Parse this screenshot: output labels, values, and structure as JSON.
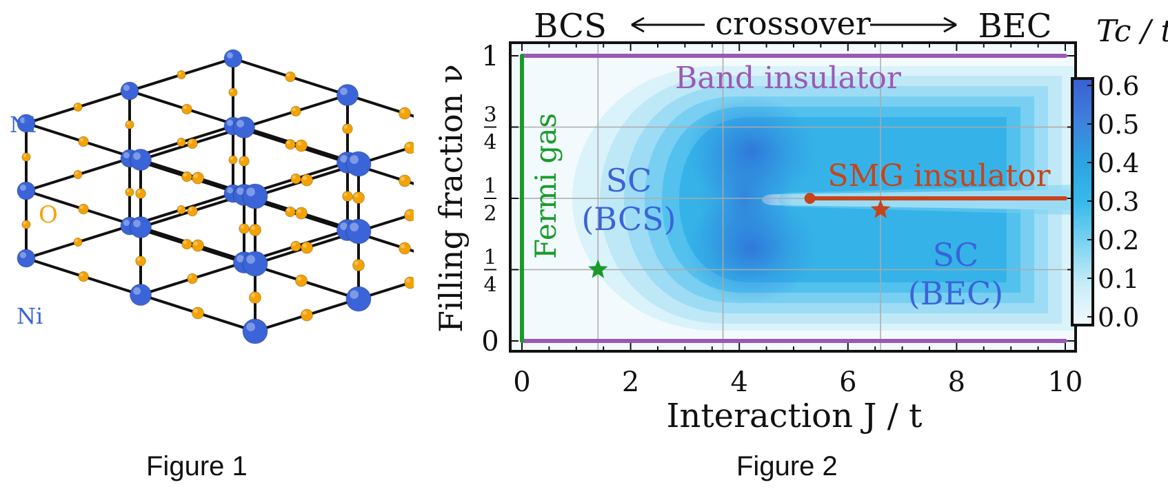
{
  "figure1": {
    "caption": "Figure 1",
    "labels": {
      "ni_top": "Ni",
      "ni_bottom": "Ni",
      "oxygen": "O"
    },
    "colors": {
      "ni": "#3a64d8",
      "o": "#f5a200",
      "bond": "#111111",
      "ni_label": "#3a64d8",
      "o_label": "#f5a200"
    }
  },
  "figure2": {
    "caption": "Figure 2",
    "regime_labels": {
      "left": "BCS",
      "middle": "crossover",
      "right": "BEC"
    },
    "phase_labels": {
      "band_insulator": "Band insulator",
      "fermi_gas": "Fermi gas",
      "sc_bcs_line1": "SC",
      "sc_bcs_line2": "(BCS)",
      "smg_insulator": "SMG insulator",
      "sc_bec_line1": "SC",
      "sc_bec_line2": "(BEC)"
    },
    "colorbar": {
      "title": "Tc / t",
      "ticks": [
        "0.6",
        "0.5",
        "0.4",
        "0.3",
        "0.2",
        "0.1",
        "0.0"
      ],
      "range": [
        0.0,
        0.6
      ]
    },
    "colors": {
      "band": "#9b59b6",
      "fermi": "#1a9a2a",
      "smg": "#c8431a",
      "sc_label": "#3a64d8",
      "grid": "#aaaaaa"
    }
  },
  "chart_data": {
    "type": "heatmap",
    "xlabel": "Interaction J / t",
    "ylabel": "Filling fraction ν",
    "x_ticks": [
      "0",
      "2",
      "4",
      "6",
      "8",
      "10"
    ],
    "y_ticks": [
      {
        "value": 0,
        "label": "0"
      },
      {
        "value": 0.25,
        "label": "1/4"
      },
      {
        "value": 0.5,
        "label": "1/2"
      },
      {
        "value": 0.75,
        "label": "3/4"
      },
      {
        "value": 1,
        "label": "1"
      }
    ],
    "xlim": [
      0,
      10
    ],
    "ylim": [
      0,
      1
    ],
    "grid": true,
    "gridlines_x": [
      1.4,
      3.7,
      6.6
    ],
    "gridlines_y": [
      0.25,
      0.5,
      0.75
    ],
    "z_label": "Tc / t",
    "z_range": [
      0.0,
      0.6
    ],
    "lines": [
      {
        "label": "Band insulator",
        "x": [
          0,
          10
        ],
        "y": [
          1,
          1
        ]
      },
      {
        "label": "Band insulator",
        "x": [
          0,
          10
        ],
        "y": [
          0,
          0
        ]
      },
      {
        "label": "Fermi gas",
        "x": [
          0,
          0
        ],
        "y": [
          0,
          1
        ]
      },
      {
        "label": "SMG insulator",
        "x": [
          5.3,
          10
        ],
        "y": [
          0.5,
          0.5
        ]
      }
    ],
    "markers": [
      {
        "kind": "star",
        "x": 1.4,
        "y": 0.25,
        "color": "#1a9a2a"
      },
      {
        "kind": "star",
        "x": 6.6,
        "y": 0.46,
        "color": "#c8431a"
      },
      {
        "kind": "dot",
        "x": 5.3,
        "y": 0.5,
        "color": "#c8431a"
      }
    ]
  }
}
